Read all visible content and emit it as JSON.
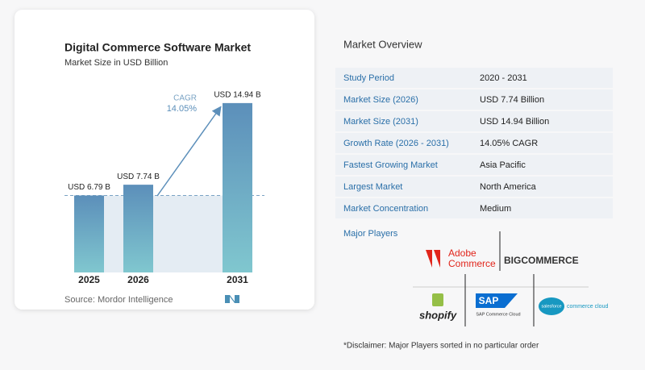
{
  "chart_data": {
    "type": "bar",
    "title": "Digital Commerce Software Market",
    "subtitle": "Market Size in USD Billion",
    "categories": [
      "2025",
      "2026",
      "2031"
    ],
    "values": [
      6.79,
      7.74,
      14.94
    ],
    "value_labels": [
      "USD 6.79 B",
      "USD 7.74 B",
      "USD 14.94 B"
    ],
    "ylim": [
      0,
      15.5
    ],
    "color": "#6a9fc4",
    "annotation": {
      "label": "CAGR",
      "value": "14.05%"
    },
    "source": "Source: Mordor Intelligence"
  },
  "overview": {
    "title": "Market Overview",
    "rows": [
      [
        "Study Period",
        "2020 - 2031"
      ],
      [
        "Market Size (2026)",
        "USD 7.74 Billion"
      ],
      [
        "Market Size (2031)",
        "USD 14.94 Billion"
      ],
      [
        "Growth Rate (2026 - 2031)",
        "14.05% CAGR"
      ],
      [
        "Fastest Growing Market",
        "Asia Pacific"
      ],
      [
        "Largest Market",
        "North America"
      ],
      [
        "Market Concentration",
        "Medium"
      ]
    ]
  },
  "major_players": {
    "title": "Major Players",
    "logos": [
      "Adobe",
      "Commerce",
      "BIGCOMMERCE",
      "shopify",
      "SAP",
      "SAP Commerce Cloud",
      "salesforce",
      "commerce cloud"
    ]
  },
  "disclaimer": "*Disclaimer: Major Players sorted in no particular order"
}
